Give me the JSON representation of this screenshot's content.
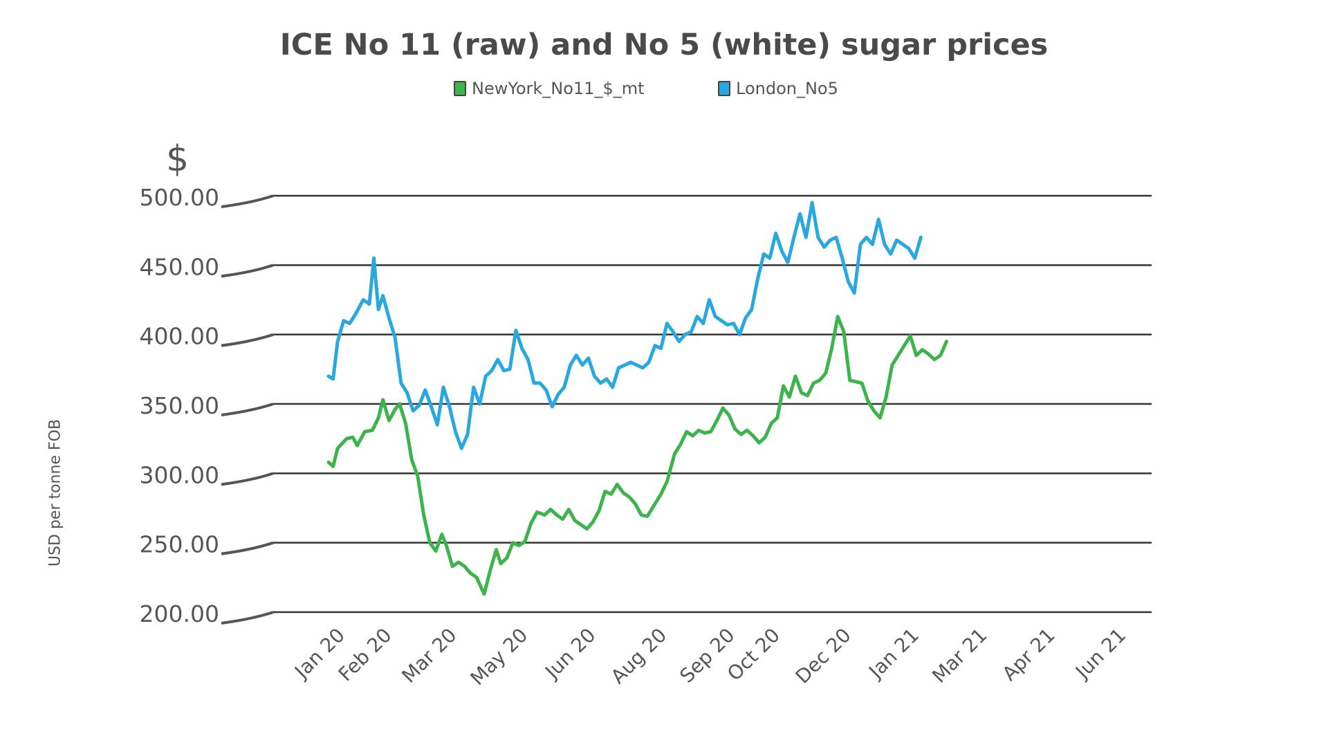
{
  "chart_data": {
    "type": "line",
    "title": "ICE No 11 (raw) and No 5 (white) sugar prices",
    "unit_symbol": "$",
    "ylabel": "USD per tonne FOB",
    "xlabel": "",
    "ylim": [
      200,
      500
    ],
    "y_ticks": [
      "500.00",
      "450.00",
      "400.00",
      "350.00",
      "300.00",
      "250.00",
      "200.00"
    ],
    "y_tick_values": [
      500,
      450,
      400,
      350,
      300,
      250,
      200
    ],
    "x_tick_labels": [
      "Jan 20",
      "Feb 20",
      "Mar 20",
      "May 20",
      "Jun 20",
      "Aug 20",
      "Sep 20",
      "Oct 20",
      "Dec 20",
      "Jan 21",
      "Mar 21",
      "Apr 21",
      "Jun 21"
    ],
    "x_tick_dates": [
      "2020-01-01",
      "2020-02-01",
      "2020-03-15",
      "2020-05-01",
      "2020-06-15",
      "2020-08-01",
      "2020-09-15",
      "2020-10-15",
      "2020-12-01",
      "2021-01-15",
      "2021-03-01",
      "2021-04-15",
      "2021-06-01"
    ],
    "grid": true,
    "legend_position": "top-center",
    "series": [
      {
        "name": "NewYork_No11_$_mt",
        "color": "#3cb44b",
        "points": [
          [
            "2020-01-01",
            308
          ],
          [
            "2020-01-04",
            305
          ],
          [
            "2020-01-07",
            318
          ],
          [
            "2020-01-13",
            325
          ],
          [
            "2020-01-17",
            326
          ],
          [
            "2020-01-20",
            320
          ],
          [
            "2020-01-25",
            330
          ],
          [
            "2020-01-30",
            331
          ],
          [
            "2020-02-03",
            340
          ],
          [
            "2020-02-06",
            353
          ],
          [
            "2020-02-10",
            338
          ],
          [
            "2020-02-14",
            346
          ],
          [
            "2020-02-17",
            350
          ],
          [
            "2020-02-21",
            336
          ],
          [
            "2020-02-25",
            310
          ],
          [
            "2020-02-29",
            298
          ],
          [
            "2020-03-04",
            270
          ],
          [
            "2020-03-08",
            250
          ],
          [
            "2020-03-12",
            244
          ],
          [
            "2020-03-16",
            256
          ],
          [
            "2020-03-19",
            248
          ],
          [
            "2020-03-23",
            233
          ],
          [
            "2020-03-27",
            236
          ],
          [
            "2020-03-31",
            233
          ],
          [
            "2020-04-04",
            228
          ],
          [
            "2020-04-08",
            225
          ],
          [
            "2020-04-13",
            213
          ],
          [
            "2020-04-17",
            230
          ],
          [
            "2020-04-21",
            245
          ],
          [
            "2020-04-24",
            235
          ],
          [
            "2020-04-28",
            239
          ],
          [
            "2020-05-02",
            250
          ],
          [
            "2020-05-06",
            248
          ],
          [
            "2020-05-10",
            251
          ],
          [
            "2020-05-14",
            264
          ],
          [
            "2020-05-18",
            272
          ],
          [
            "2020-05-23",
            270
          ],
          [
            "2020-05-27",
            274
          ],
          [
            "2020-05-31",
            270
          ],
          [
            "2020-06-04",
            267
          ],
          [
            "2020-06-08",
            274
          ],
          [
            "2020-06-12",
            266
          ],
          [
            "2020-06-16",
            263
          ],
          [
            "2020-06-20",
            260
          ],
          [
            "2020-06-24",
            265
          ],
          [
            "2020-06-28",
            273
          ],
          [
            "2020-07-02",
            287
          ],
          [
            "2020-07-06",
            285
          ],
          [
            "2020-07-10",
            292
          ],
          [
            "2020-07-14",
            286
          ],
          [
            "2020-07-18",
            283
          ],
          [
            "2020-07-22",
            278
          ],
          [
            "2020-07-26",
            270
          ],
          [
            "2020-07-30",
            269
          ],
          [
            "2020-08-04",
            278
          ],
          [
            "2020-08-08",
            285
          ],
          [
            "2020-08-12",
            294
          ],
          [
            "2020-08-17",
            314
          ],
          [
            "2020-08-21",
            321
          ],
          [
            "2020-08-25",
            330
          ],
          [
            "2020-08-29",
            327
          ],
          [
            "2020-09-02",
            331
          ],
          [
            "2020-09-06",
            329
          ],
          [
            "2020-09-10",
            330
          ],
          [
            "2020-09-14",
            338
          ],
          [
            "2020-09-18",
            347
          ],
          [
            "2020-09-22",
            342
          ],
          [
            "2020-09-26",
            332
          ],
          [
            "2020-09-30",
            328
          ],
          [
            "2020-10-04",
            331
          ],
          [
            "2020-10-08",
            327
          ],
          [
            "2020-10-12",
            322
          ],
          [
            "2020-10-16",
            326
          ],
          [
            "2020-10-20",
            336
          ],
          [
            "2020-10-24",
            340
          ],
          [
            "2020-10-28",
            363
          ],
          [
            "2020-11-01",
            355
          ],
          [
            "2020-11-05",
            370
          ],
          [
            "2020-11-09",
            358
          ],
          [
            "2020-11-13",
            356
          ],
          [
            "2020-11-17",
            365
          ],
          [
            "2020-11-21",
            367
          ],
          [
            "2020-11-25",
            372
          ],
          [
            "2020-11-29",
            390
          ],
          [
            "2020-12-03",
            413
          ],
          [
            "2020-12-07",
            402
          ],
          [
            "2020-12-11",
            367
          ],
          [
            "2020-12-15",
            366
          ],
          [
            "2020-12-19",
            365
          ],
          [
            "2020-12-23",
            352
          ],
          [
            "2020-12-27",
            345
          ],
          [
            "2020-12-31",
            340
          ],
          [
            "2021-01-04",
            355
          ],
          [
            "2021-01-08",
            378
          ],
          [
            "2021-01-12",
            385
          ],
          [
            "2021-01-16",
            392
          ],
          [
            "2021-01-20",
            399
          ],
          [
            "2021-01-24",
            385
          ],
          [
            "2021-01-28",
            389
          ],
          [
            "2021-02-01",
            386
          ],
          [
            "2021-02-05",
            382
          ],
          [
            "2021-02-09",
            385
          ],
          [
            "2021-02-13",
            395
          ]
        ]
      },
      {
        "name": "London_No5",
        "color": "#29a8e0",
        "points": [
          [
            "2020-01-01",
            370
          ],
          [
            "2020-01-04",
            368
          ],
          [
            "2020-01-07",
            395
          ],
          [
            "2020-01-11",
            410
          ],
          [
            "2020-01-15",
            408
          ],
          [
            "2020-01-19",
            415
          ],
          [
            "2020-01-24",
            425
          ],
          [
            "2020-01-28",
            422
          ],
          [
            "2020-01-31",
            455
          ],
          [
            "2020-02-03",
            418
          ],
          [
            "2020-02-06",
            428
          ],
          [
            "2020-02-10",
            412
          ],
          [
            "2020-02-14",
            398
          ],
          [
            "2020-02-18",
            365
          ],
          [
            "2020-02-22",
            358
          ],
          [
            "2020-02-26",
            345
          ],
          [
            "2020-03-01",
            349
          ],
          [
            "2020-03-05",
            360
          ],
          [
            "2020-03-09",
            348
          ],
          [
            "2020-03-13",
            335
          ],
          [
            "2020-03-17",
            362
          ],
          [
            "2020-03-21",
            348
          ],
          [
            "2020-03-25",
            330
          ],
          [
            "2020-03-29",
            318
          ],
          [
            "2020-04-02",
            328
          ],
          [
            "2020-04-06",
            362
          ],
          [
            "2020-04-10",
            350
          ],
          [
            "2020-04-14",
            370
          ],
          [
            "2020-04-18",
            374
          ],
          [
            "2020-04-22",
            382
          ],
          [
            "2020-04-26",
            374
          ],
          [
            "2020-04-30",
            375
          ],
          [
            "2020-05-04",
            403
          ],
          [
            "2020-05-08",
            390
          ],
          [
            "2020-05-12",
            382
          ],
          [
            "2020-05-16",
            365
          ],
          [
            "2020-05-20",
            365
          ],
          [
            "2020-05-24",
            360
          ],
          [
            "2020-05-28",
            348
          ],
          [
            "2020-06-01",
            357
          ],
          [
            "2020-06-05",
            362
          ],
          [
            "2020-06-09",
            378
          ],
          [
            "2020-06-13",
            385
          ],
          [
            "2020-06-17",
            378
          ],
          [
            "2020-06-21",
            383
          ],
          [
            "2020-06-25",
            370
          ],
          [
            "2020-06-29",
            365
          ],
          [
            "2020-07-03",
            368
          ],
          [
            "2020-07-07",
            362
          ],
          [
            "2020-07-11",
            376
          ],
          [
            "2020-07-15",
            378
          ],
          [
            "2020-07-19",
            380
          ],
          [
            "2020-07-23",
            378
          ],
          [
            "2020-07-27",
            376
          ],
          [
            "2020-07-31",
            380
          ],
          [
            "2020-08-04",
            392
          ],
          [
            "2020-08-08",
            390
          ],
          [
            "2020-08-12",
            408
          ],
          [
            "2020-08-16",
            402
          ],
          [
            "2020-08-20",
            395
          ],
          [
            "2020-08-24",
            400
          ],
          [
            "2020-08-28",
            402
          ],
          [
            "2020-09-01",
            413
          ],
          [
            "2020-09-05",
            408
          ],
          [
            "2020-09-09",
            425
          ],
          [
            "2020-09-13",
            413
          ],
          [
            "2020-09-17",
            410
          ],
          [
            "2020-09-21",
            407
          ],
          [
            "2020-09-25",
            408
          ],
          [
            "2020-09-29",
            400
          ],
          [
            "2020-10-03",
            412
          ],
          [
            "2020-10-07",
            418
          ],
          [
            "2020-10-11",
            440
          ],
          [
            "2020-10-15",
            458
          ],
          [
            "2020-10-19",
            455
          ],
          [
            "2020-10-23",
            473
          ],
          [
            "2020-10-27",
            460
          ],
          [
            "2020-10-31",
            452
          ],
          [
            "2020-11-04",
            470
          ],
          [
            "2020-11-08",
            487
          ],
          [
            "2020-11-12",
            470
          ],
          [
            "2020-11-16",
            495
          ],
          [
            "2020-11-20",
            470
          ],
          [
            "2020-11-24",
            463
          ],
          [
            "2020-11-28",
            468
          ],
          [
            "2020-12-02",
            470
          ],
          [
            "2020-12-06",
            455
          ],
          [
            "2020-12-10",
            438
          ],
          [
            "2020-12-14",
            430
          ],
          [
            "2020-12-18",
            465
          ],
          [
            "2020-12-22",
            470
          ],
          [
            "2020-12-26",
            465
          ],
          [
            "2020-12-30",
            483
          ],
          [
            "2021-01-03",
            465
          ],
          [
            "2021-01-07",
            458
          ],
          [
            "2021-01-11",
            468
          ],
          [
            "2021-01-15",
            465
          ],
          [
            "2021-01-19",
            462
          ],
          [
            "2021-01-23",
            455
          ],
          [
            "2021-01-27",
            470
          ]
        ]
      }
    ]
  }
}
